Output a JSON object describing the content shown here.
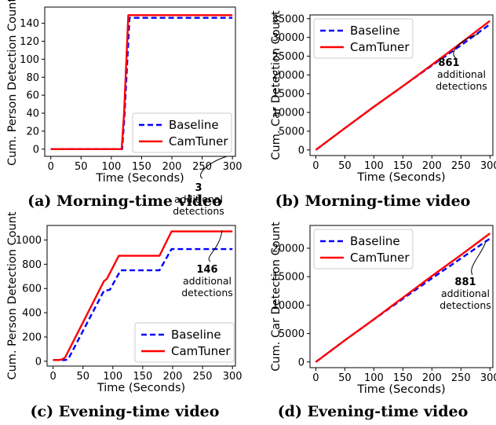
{
  "figure": {
    "captions": [
      "(a) Morning-time video",
      "(b) Morning-time video",
      "(c) Evening-time video",
      "(d) Evening-time video"
    ]
  },
  "chart_data": [
    {
      "type": "line",
      "caption": "(a) Morning-time video",
      "xlabel": "Time (Seconds)",
      "ylabel": "Cum. Person Detection Count",
      "xlim": [
        -10,
        305
      ],
      "ylim": [
        -8,
        158
      ],
      "xticks": [
        0,
        50,
        100,
        150,
        200,
        250,
        300
      ],
      "yticks": [
        0,
        20,
        40,
        60,
        80,
        100,
        120,
        140
      ],
      "legend": "lower-right",
      "grid": false,
      "series": [
        {
          "name": "Baseline",
          "color": "#0000ff",
          "style": "dashed",
          "x": [
            0,
            118,
            122,
            130,
            300
          ],
          "y": [
            0,
            0,
            40,
            146,
            146
          ]
        },
        {
          "name": "CamTuner",
          "color": "#ff0000",
          "style": "solid",
          "x": [
            0,
            117,
            121,
            128,
            300
          ],
          "y": [
            0,
            0,
            40,
            149,
            149
          ]
        }
      ],
      "annotation": {
        "value": "3",
        "text": [
          "additional",
          "detections"
        ]
      }
    },
    {
      "type": "line",
      "caption": "(b) Morning-time video",
      "xlabel": "Time (Seconds)",
      "ylabel": "Cum. Car Detection Count",
      "xlim": [
        -10,
        305
      ],
      "ylim": [
        -1500,
        36000
      ],
      "xticks": [
        0,
        50,
        100,
        150,
        200,
        250,
        300
      ],
      "yticks": [
        0,
        5000,
        10000,
        15000,
        20000,
        25000,
        30000,
        35000
      ],
      "legend": "upper-left",
      "grid": false,
      "series": [
        {
          "name": "Baseline",
          "color": "#0000ff",
          "style": "dashed",
          "x": [
            0,
            50,
            100,
            150,
            200,
            250,
            300
          ],
          "y": [
            0,
            5800,
            11500,
            17000,
            22500,
            27900,
            33500
          ]
        },
        {
          "name": "CamTuner",
          "color": "#ff0000",
          "style": "solid",
          "x": [
            0,
            50,
            100,
            150,
            200,
            250,
            300
          ],
          "y": [
            0,
            5800,
            11500,
            17000,
            22700,
            28500,
            34400
          ]
        }
      ],
      "annotation": {
        "value": "861",
        "text": [
          "additional",
          "detections"
        ]
      }
    },
    {
      "type": "line",
      "caption": "(c) Evening-time video",
      "xlabel": "Time (Seconds)",
      "ylabel": "Cum. Person Detection Count",
      "xlim": [
        -10,
        305
      ],
      "ylim": [
        -40,
        1120
      ],
      "xticks": [
        0,
        50,
        100,
        150,
        200,
        250,
        300
      ],
      "yticks": [
        0,
        200,
        400,
        600,
        800,
        1000
      ],
      "legend": "lower-right",
      "grid": false,
      "series": [
        {
          "name": "Baseline",
          "color": "#0000ff",
          "style": "dashed",
          "x": [
            0,
            10,
            20,
            25,
            85,
            95,
            113,
            178,
            198,
            300
          ],
          "y": [
            10,
            10,
            10,
            15,
            580,
            590,
            750,
            750,
            925,
            925
          ]
        },
        {
          "name": "CamTuner",
          "color": "#ff0000",
          "style": "solid",
          "x": [
            0,
            10,
            15,
            20,
            85,
            90,
            110,
            178,
            198,
            300
          ],
          "y": [
            10,
            10,
            15,
            30,
            660,
            680,
            870,
            870,
            1071,
            1071
          ]
        }
      ],
      "annotation": {
        "value": "146",
        "text": [
          "additional",
          "detections"
        ]
      }
    },
    {
      "type": "line",
      "caption": "(d) Evening-time video",
      "xlabel": "Time (Seconds)",
      "ylabel": "Cum. Car Detection Count",
      "xlim": [
        -10,
        305
      ],
      "ylim": [
        -1000,
        24000
      ],
      "xticks": [
        0,
        50,
        100,
        150,
        200,
        250,
        300
      ],
      "yticks": [
        0,
        5000,
        10000,
        15000,
        20000
      ],
      "legend": "upper-left",
      "grid": false,
      "series": [
        {
          "name": "Baseline",
          "color": "#0000ff",
          "style": "dashed",
          "x": [
            0,
            50,
            100,
            150,
            200,
            250,
            300
          ],
          "y": [
            0,
            3800,
            7500,
            11100,
            14700,
            18200,
            21700
          ]
        },
        {
          "name": "CamTuner",
          "color": "#ff0000",
          "style": "solid",
          "x": [
            0,
            50,
            100,
            150,
            200,
            250,
            300
          ],
          "y": [
            0,
            3800,
            7500,
            11300,
            15100,
            18800,
            22600
          ]
        }
      ],
      "annotation": {
        "value": "881",
        "text": [
          "additional",
          "detections"
        ]
      }
    }
  ]
}
